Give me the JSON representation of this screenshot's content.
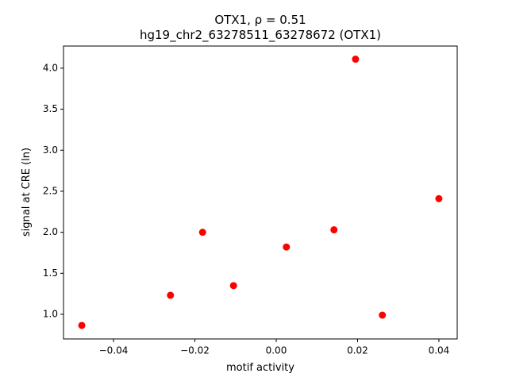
{
  "chart_data": {
    "type": "scatter",
    "title": "OTX1, ρ = 0.51",
    "subtitle": "hg19_chr2_63278511_63278672 (OTX1)",
    "x_label": "motif activity",
    "y_label": "signal at CRE (ln)",
    "color": "#ff0000",
    "series": [
      {
        "x": [
          -0.0478,
          -0.026,
          -0.0181,
          -0.0105,
          0.0025,
          0.0142,
          0.0195,
          0.0261,
          0.04
        ],
        "values": [
          0.865,
          1.232,
          2.0,
          1.35,
          1.82,
          2.03,
          4.11,
          0.99,
          2.41
        ]
      }
    ],
    "xlim": [
      -0.0523,
      0.0445
    ],
    "ylim": [
      0.7,
      4.27
    ],
    "xticks": [
      {
        "value": -0.04,
        "label": "−0.04"
      },
      {
        "value": -0.02,
        "label": "−0.02"
      },
      {
        "value": 0,
        "label": "0.00"
      },
      {
        "value": 0.02,
        "label": "0.02"
      },
      {
        "value": 0.04,
        "label": "0.04"
      }
    ],
    "yticks": [
      {
        "value": 1,
        "label": "1.0"
      },
      {
        "value": 1.5,
        "label": "1.5"
      },
      {
        "value": 2,
        "label": "2.0"
      },
      {
        "value": 2.5,
        "label": "2.5"
      },
      {
        "value": 3,
        "label": "3.0"
      },
      {
        "value": 3.5,
        "label": "3.5"
      },
      {
        "value": 4,
        "label": "4.0"
      }
    ]
  }
}
